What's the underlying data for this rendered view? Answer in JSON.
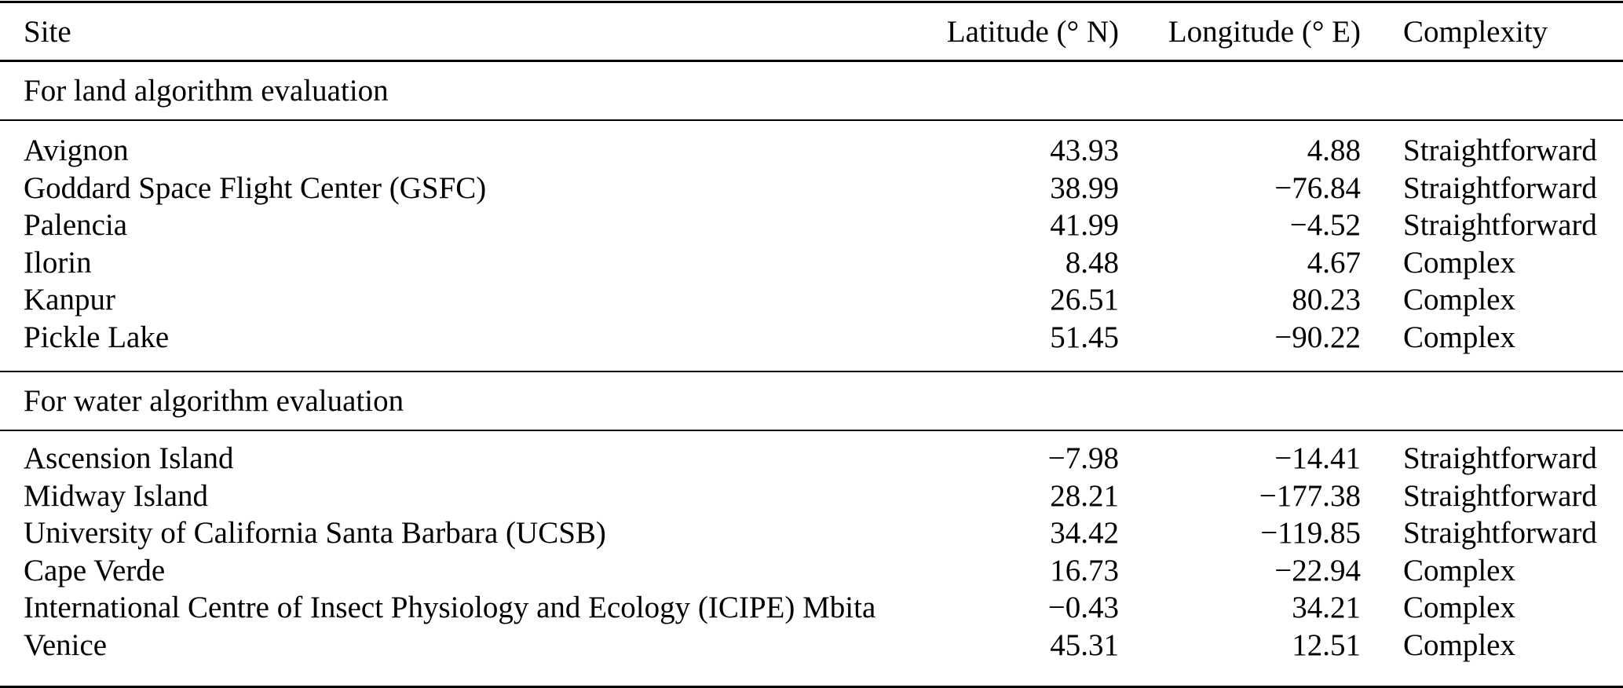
{
  "table": {
    "columns": {
      "site": "Site",
      "lat": "Latitude (° N)",
      "lon": "Longitude (° E)",
      "complexity": "Complexity"
    },
    "sections": [
      {
        "label": "For land algorithm evaluation",
        "rows": [
          {
            "site": "Avignon",
            "lat": "43.93",
            "lon": "4.88",
            "complexity": "Straightforward"
          },
          {
            "site": "Goddard Space Flight Center (GSFC)",
            "lat": "38.99",
            "lon": "−76.84",
            "complexity": "Straightforward"
          },
          {
            "site": "Palencia",
            "lat": "41.99",
            "lon": "−4.52",
            "complexity": "Straightforward"
          },
          {
            "site": "Ilorin",
            "lat": "8.48",
            "lon": "4.67",
            "complexity": "Complex"
          },
          {
            "site": "Kanpur",
            "lat": "26.51",
            "lon": "80.23",
            "complexity": "Complex"
          },
          {
            "site": "Pickle Lake",
            "lat": "51.45",
            "lon": "−90.22",
            "complexity": "Complex"
          }
        ]
      },
      {
        "label": "For water algorithm evaluation",
        "rows": [
          {
            "site": "Ascension Island",
            "lat": "−7.98",
            "lon": "−14.41",
            "complexity": "Straightforward"
          },
          {
            "site": "Midway Island",
            "lat": "28.21",
            "lon": "−177.38",
            "complexity": "Straightforward"
          },
          {
            "site": "University of California Santa Barbara (UCSB)",
            "lat": "34.42",
            "lon": "−119.85",
            "complexity": "Straightforward"
          },
          {
            "site": "Cape Verde",
            "lat": "16.73",
            "lon": "−22.94",
            "complexity": "Complex"
          },
          {
            "site": "International Centre of Insect Physiology and Ecology (ICIPE) Mbita",
            "lat": "−0.43",
            "lon": "34.21",
            "complexity": "Complex"
          },
          {
            "site": "Venice",
            "lat": "45.31",
            "lon": "12.51",
            "complexity": "Complex"
          }
        ]
      }
    ]
  }
}
